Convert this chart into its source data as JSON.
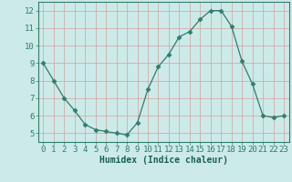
{
  "x": [
    0,
    1,
    2,
    3,
    4,
    5,
    6,
    7,
    8,
    9,
    10,
    11,
    12,
    13,
    14,
    15,
    16,
    17,
    18,
    19,
    20,
    21,
    22,
    23
  ],
  "y": [
    9.0,
    8.0,
    7.0,
    6.3,
    5.5,
    5.2,
    5.1,
    5.0,
    4.9,
    5.6,
    7.5,
    8.8,
    9.5,
    10.5,
    10.8,
    11.5,
    12.0,
    12.0,
    11.1,
    9.1,
    7.8,
    6.0,
    5.9,
    6.0
  ],
  "line_color": "#2e7d6e",
  "marker": "D",
  "marker_size": 2.5,
  "bg_color": "#cceae8",
  "grid_color_major": "#d4a0a0",
  "grid_color_minor": "#d4a0a0",
  "xlabel": "Humidex (Indice chaleur)",
  "xlabel_fontsize": 7,
  "tick_fontsize": 6.5,
  "ylim": [
    4.5,
    12.5
  ],
  "xlim": [
    -0.5,
    23.5
  ],
  "yticks": [
    5,
    6,
    7,
    8,
    9,
    10,
    11,
    12
  ],
  "xticks": [
    0,
    1,
    2,
    3,
    4,
    5,
    6,
    7,
    8,
    9,
    10,
    11,
    12,
    13,
    14,
    15,
    16,
    17,
    18,
    19,
    20,
    21,
    22,
    23
  ]
}
